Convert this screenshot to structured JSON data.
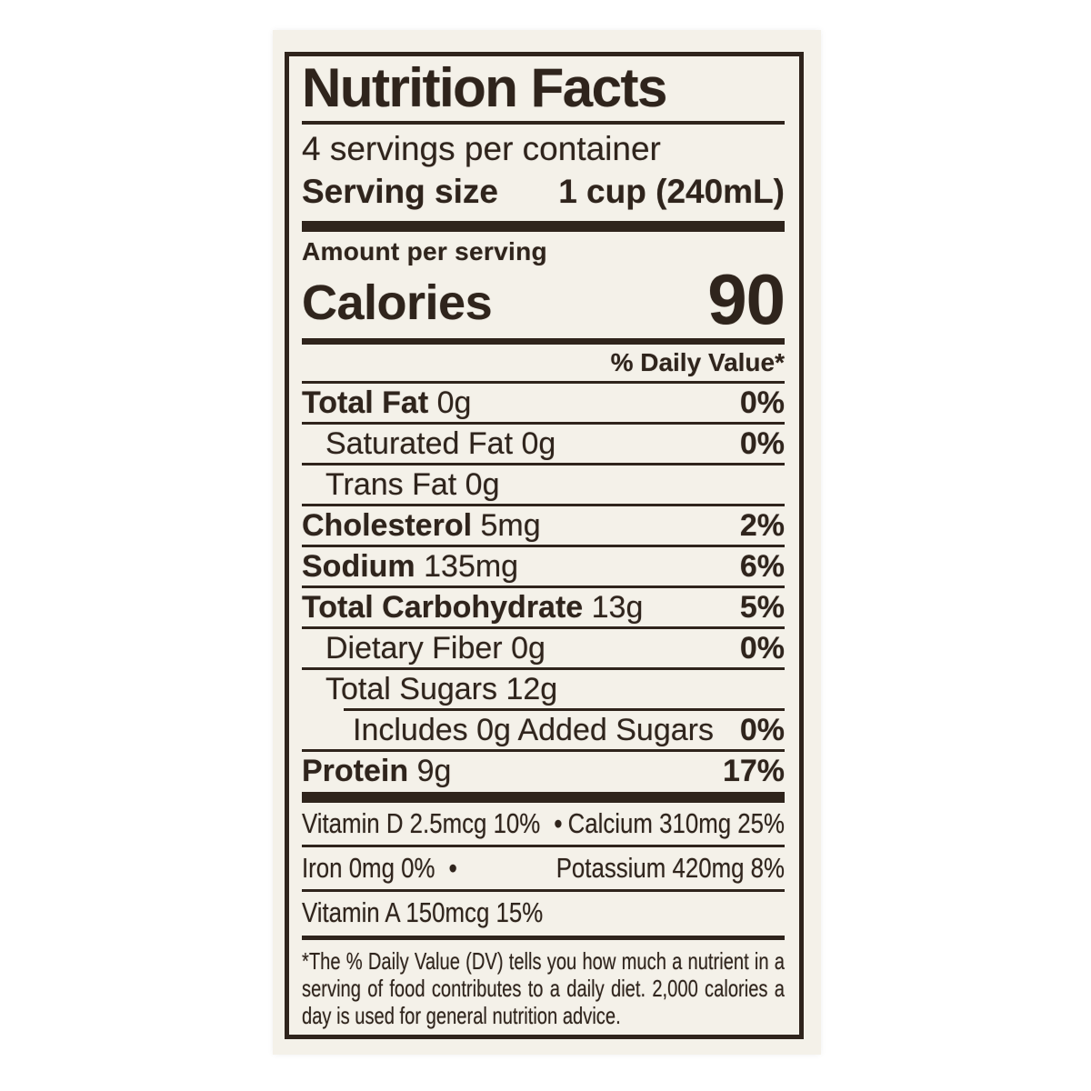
{
  "colors": {
    "ink": "#2f241c",
    "panel": "#f4f1e9",
    "page": "#ffffff"
  },
  "label": {
    "title": "Nutrition Facts",
    "servings_per_container": "4 servings per container",
    "serving_size": {
      "label": "Serving size",
      "value": "1 cup (240mL)"
    },
    "amount_per_serving": "Amount per serving",
    "calories": {
      "label": "Calories",
      "value": "90"
    },
    "daily_value_header": "% Daily Value*",
    "nutrients": [
      {
        "name": "Total Fat",
        "amount": "0g",
        "dv": "0%",
        "bold": true,
        "indent": 0
      },
      {
        "name": "Saturated Fat",
        "amount": "0g",
        "dv": "0%",
        "bold": false,
        "indent": 1
      },
      {
        "name": "Trans Fat",
        "amount": "0g",
        "dv": "",
        "bold": false,
        "indent": 1
      },
      {
        "name": "Cholesterol",
        "amount": "5mg",
        "dv": "2%",
        "bold": true,
        "indent": 0
      },
      {
        "name": "Sodium",
        "amount": "135mg",
        "dv": "6%",
        "bold": true,
        "indent": 0
      },
      {
        "name": "Total Carbohydrate",
        "amount": "13g",
        "dv": "5%",
        "bold": true,
        "indent": 0
      },
      {
        "name": "Dietary Fiber",
        "amount": "0g",
        "dv": "0%",
        "bold": false,
        "indent": 1
      },
      {
        "name": "Total Sugars",
        "amount": "12g",
        "dv": "",
        "bold": false,
        "indent": 1
      },
      {
        "name": "Includes 0g Added Sugars",
        "amount": "",
        "dv": "0%",
        "bold": false,
        "indent": 2,
        "indent_rule": true
      },
      {
        "name": "Protein",
        "amount": "9g",
        "dv": "17%",
        "bold": true,
        "indent": 0
      }
    ],
    "micronutrients": [
      {
        "left": "Vitamin D 2.5mcg 10%",
        "bullet": "•",
        "right": "Calcium 310mg 25%"
      },
      {
        "left": "Iron 0mg 0%",
        "bullet": "•",
        "right": "Potassium 420mg 8%"
      },
      {
        "left": "Vitamin A 150mcg 15%",
        "bullet": "",
        "right": ""
      }
    ],
    "footnote": "*The % Daily Value (DV) tells you how much a nutrient in a serving of food contributes to a daily diet.  2,000 calories a day is used for general nutrition advice."
  }
}
